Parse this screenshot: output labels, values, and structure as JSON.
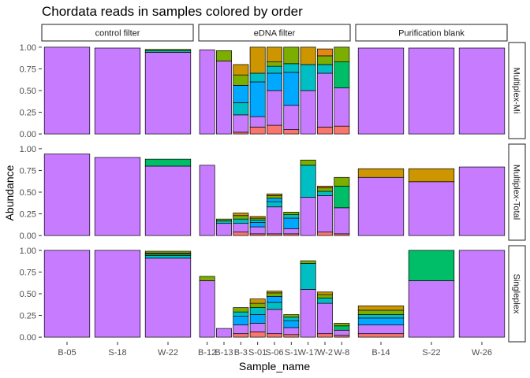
{
  "chart_data": {
    "type": "bar",
    "title": "Chordata reads in samples colored by order",
    "xlabel": "Sample_name",
    "ylabel": "Abundance",
    "ylim": [
      0,
      1
    ],
    "yticks": [
      "0.00",
      "0.25",
      "0.50",
      "0.75",
      "1.00"
    ],
    "grid": false,
    "legend": "none",
    "order_colors": [
      "#F8766D",
      "#7CAE00",
      "#00BFC4",
      "#C77CFF",
      "#CD9600",
      "#00A9FF",
      "#00BE67",
      "#E68613",
      "#FF61CC"
    ],
    "columns": [
      {
        "name": "control filter",
        "samples": [
          "B-05",
          "S-18",
          "W-22"
        ]
      },
      {
        "name": "eDNA filter",
        "samples": [
          "B-12",
          "B-13",
          "B-3",
          "S-01",
          "S-06",
          "S-1",
          "W-17",
          "W-2",
          "W-8"
        ]
      },
      {
        "name": "Purification blank",
        "samples": [
          "B-14",
          "S-22",
          "W-26"
        ]
      }
    ],
    "tick_labels": {
      "control filter": [
        "B-05",
        "S-18",
        "W-22"
      ],
      "eDNA filter": [
        "B-12",
        "B-13",
        "B-3",
        "S-01",
        "S-06",
        "S-1",
        "W-17",
        "W-2",
        "W-8"
      ],
      "Purification blank": [
        "B-14",
        "S-22",
        "W-26"
      ]
    },
    "rows": [
      {
        "name": "Multiplex-Mi",
        "stacks": {
          "control filter": [
            [
              [
                "#C77CFF",
                1.0
              ]
            ],
            [
              [
                "#C77CFF",
                0.99
              ]
            ],
            [
              [
                "#C77CFF",
                0.94
              ],
              [
                "#00BFC4",
                0.02
              ],
              [
                "#7CAE00",
                0.015
              ]
            ]
          ],
          "eDNA filter": [
            [
              [
                "#C77CFF",
                0.97
              ]
            ],
            [
              [
                "#C77CFF",
                0.84
              ],
              [
                "#7CAE00",
                0.12
              ]
            ],
            [
              [
                "#F8766D",
                0.02
              ],
              [
                "#C77CFF",
                0.2
              ],
              [
                "#00BFC4",
                0.14
              ],
              [
                "#00A9FF",
                0.2
              ],
              [
                "#7CAE00",
                0.12
              ],
              [
                "#CD9600",
                0.12
              ]
            ],
            [
              [
                "#F8766D",
                0.08
              ],
              [
                "#C77CFF",
                0.12
              ],
              [
                "#00A9FF",
                0.4
              ],
              [
                "#00BFC4",
                0.1
              ],
              [
                "#CD9600",
                0.3
              ]
            ],
            [
              [
                "#F8766D",
                0.1
              ],
              [
                "#C77CFF",
                0.4
              ],
              [
                "#00A9FF",
                0.2
              ],
              [
                "#00BFC4",
                0.08
              ],
              [
                "#7CAE00",
                0.05
              ],
              [
                "#CD9600",
                0.17
              ]
            ],
            [
              [
                "#F8766D",
                0.05
              ],
              [
                "#C77CFF",
                0.28
              ],
              [
                "#00A9FF",
                0.38
              ],
              [
                "#00BFC4",
                0.1
              ],
              [
                "#7CAE00",
                0.19
              ]
            ],
            [
              [
                "#C77CFF",
                0.5
              ],
              [
                "#00BFC4",
                0.3
              ],
              [
                "#CD9600",
                0.2
              ]
            ],
            [
              [
                "#F8766D",
                0.08
              ],
              [
                "#C77CFF",
                0.62
              ],
              [
                "#00BFC4",
                0.1
              ],
              [
                "#7CAE00",
                0.1
              ],
              [
                "#E68613",
                0.08
              ]
            ],
            [
              [
                "#F8766D",
                0.09
              ],
              [
                "#C77CFF",
                0.44
              ],
              [
                "#00BE67",
                0.3
              ],
              [
                "#7CAE00",
                0.17
              ]
            ]
          ],
          "Purification blank": [
            [
              [
                "#C77CFF",
                0.99
              ]
            ],
            [
              [
                "#C77CFF",
                0.99
              ]
            ],
            [
              [
                "#C77CFF",
                0.99
              ]
            ]
          ]
        }
      },
      {
        "name": "Multiplex-Total",
        "stacks": {
          "control filter": [
            [
              [
                "#C77CFF",
                0.94
              ]
            ],
            [
              [
                "#C77CFF",
                0.9
              ]
            ],
            [
              [
                "#C77CFF",
                0.8
              ],
              [
                "#00BE67",
                0.08
              ]
            ]
          ],
          "eDNA filter": [
            [
              [
                "#C77CFF",
                0.81
              ]
            ],
            [
              [
                "#C77CFF",
                0.14
              ],
              [
                "#00BFC4",
                0.03
              ],
              [
                "#7CAE00",
                0.02
              ]
            ],
            [
              [
                "#F8766D",
                0.04
              ],
              [
                "#C77CFF",
                0.1
              ],
              [
                "#00BFC4",
                0.05
              ],
              [
                "#7CAE00",
                0.04
              ],
              [
                "#CD9600",
                0.03
              ]
            ],
            [
              [
                "#F8766D",
                0.02
              ],
              [
                "#C77CFF",
                0.08
              ],
              [
                "#00A9FF",
                0.05
              ],
              [
                "#00BFC4",
                0.03
              ],
              [
                "#7CAE00",
                0.02
              ],
              [
                "#CD9600",
                0.02
              ]
            ],
            [
              [
                "#F8766D",
                0.02
              ],
              [
                "#C77CFF",
                0.31
              ],
              [
                "#00BFC4",
                0.06
              ],
              [
                "#00A9FF",
                0.04
              ],
              [
                "#7CAE00",
                0.03
              ],
              [
                "#CD9600",
                0.02
              ]
            ],
            [
              [
                "#F8766D",
                0.02
              ],
              [
                "#C77CFF",
                0.06
              ],
              [
                "#00A9FF",
                0.12
              ],
              [
                "#00BFC4",
                0.04
              ],
              [
                "#7CAE00",
                0.03
              ]
            ],
            [
              [
                "#C77CFF",
                0.44
              ],
              [
                "#00BFC4",
                0.37
              ],
              [
                "#7CAE00",
                0.06
              ]
            ],
            [
              [
                "#F8766D",
                0.04
              ],
              [
                "#C77CFF",
                0.42
              ],
              [
                "#00BFC4",
                0.05
              ],
              [
                "#7CAE00",
                0.04
              ],
              [
                "#E68613",
                0.02
              ]
            ],
            [
              [
                "#F8766D",
                0.02
              ],
              [
                "#C77CFF",
                0.3
              ],
              [
                "#00BE67",
                0.25
              ],
              [
                "#7CAE00",
                0.1
              ]
            ]
          ],
          "Purification blank": [
            [
              [
                "#C77CFF",
                0.67
              ],
              [
                "#CD9600",
                0.1
              ]
            ],
            [
              [
                "#C77CFF",
                0.62
              ],
              [
                "#CD9600",
                0.15
              ]
            ],
            [
              [
                "#C77CFF",
                0.79
              ]
            ]
          ]
        }
      },
      {
        "name": "Singleplex",
        "stacks": {
          "control filter": [
            [
              [
                "#C77CFF",
                1.0
              ]
            ],
            [
              [
                "#C77CFF",
                1.0
              ]
            ],
            [
              [
                "#C77CFF",
                0.91
              ],
              [
                "#00BFC4",
                0.03
              ],
              [
                "#00BE67",
                0.02
              ],
              [
                "#F8766D",
                0.01
              ],
              [
                "#7CAE00",
                0.02
              ]
            ]
          ],
          "eDNA filter": [
            [
              [
                "#C77CFF",
                0.65
              ],
              [
                "#7CAE00",
                0.05
              ]
            ],
            [
              [
                "#C77CFF",
                0.1
              ]
            ],
            [
              [
                "#F8766D",
                0.04
              ],
              [
                "#C77CFF",
                0.1
              ],
              [
                "#00A9FF",
                0.1
              ],
              [
                "#00BFC4",
                0.05
              ],
              [
                "#7CAE00",
                0.05
              ]
            ],
            [
              [
                "#F8766D",
                0.06
              ],
              [
                "#C77CFF",
                0.1
              ],
              [
                "#00A9FF",
                0.1
              ],
              [
                "#00BFC4",
                0.08
              ],
              [
                "#7CAE00",
                0.05
              ],
              [
                "#CD9600",
                0.05
              ]
            ],
            [
              [
                "#F8766D",
                0.04
              ],
              [
                "#C77CFF",
                0.28
              ],
              [
                "#00BFC4",
                0.08
              ],
              [
                "#00A9FF",
                0.07
              ],
              [
                "#7CAE00",
                0.04
              ],
              [
                "#CD9600",
                0.02
              ]
            ],
            [
              [
                "#F8766D",
                0.03
              ],
              [
                "#C77CFF",
                0.08
              ],
              [
                "#00A9FF",
                0.08
              ],
              [
                "#00BFC4",
                0.04
              ],
              [
                "#7CAE00",
                0.03
              ]
            ],
            [
              [
                "#C77CFF",
                0.55
              ],
              [
                "#00BFC4",
                0.3
              ],
              [
                "#7CAE00",
                0.03
              ]
            ],
            [
              [
                "#F8766D",
                0.04
              ],
              [
                "#C77CFF",
                0.35
              ],
              [
                "#00BFC4",
                0.06
              ],
              [
                "#7CAE00",
                0.04
              ],
              [
                "#CD9600",
                0.03
              ]
            ],
            [
              [
                "#F8766D",
                0.02
              ],
              [
                "#C77CFF",
                0.06
              ],
              [
                "#00BE67",
                0.05
              ],
              [
                "#7CAE00",
                0.03
              ]
            ]
          ],
          "Purification blank": [
            [
              [
                "#F8766D",
                0.04
              ],
              [
                "#C77CFF",
                0.1
              ],
              [
                "#00A9FF",
                0.08
              ],
              [
                "#00BFC4",
                0.04
              ],
              [
                "#7CAE00",
                0.05
              ],
              [
                "#CD9600",
                0.05
              ]
            ],
            [
              [
                "#C77CFF",
                0.65
              ],
              [
                "#00BE67",
                0.35
              ]
            ],
            [
              [
                "#C77CFF",
                1.0
              ]
            ]
          ]
        }
      }
    ]
  }
}
